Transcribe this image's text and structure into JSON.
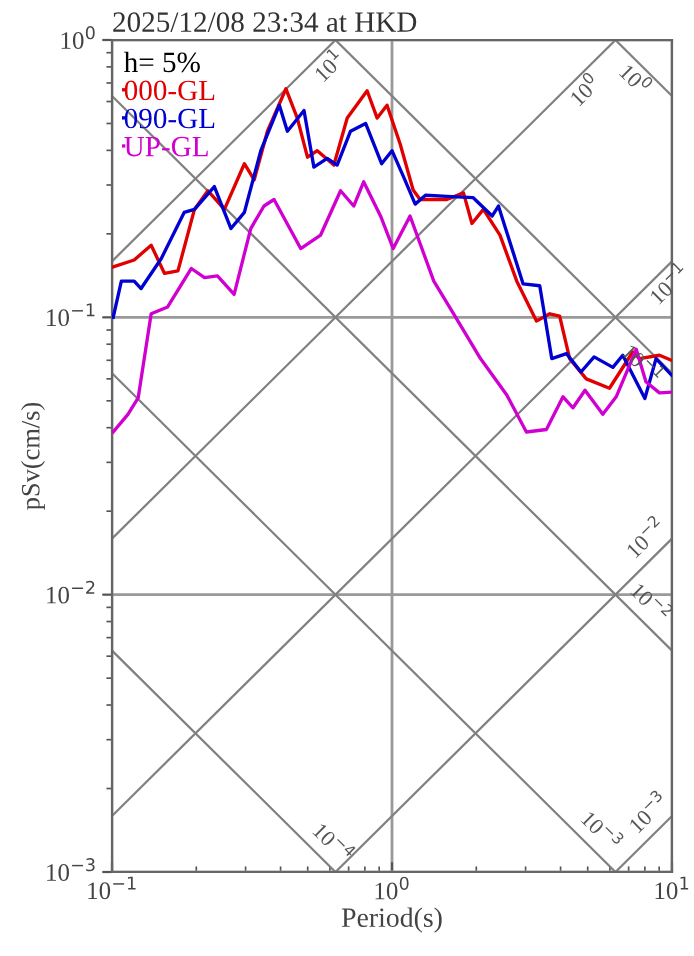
{
  "chart_data": {
    "type": "line",
    "title": "2025/12/08 23:34 at HKD",
    "xlabel": "Period(s)",
    "ylabel": "pSv(cm/s)",
    "legend_title": "h= 5%",
    "legend": "top left",
    "log": "xy",
    "grid": true,
    "line_style": "solid",
    "marker": "none",
    "xlim": [
      0.1,
      10
    ],
    "ylim": [
      0.001,
      1
    ],
    "xticks": [
      {
        "value": 0.1,
        "label": "10$^{−1}$"
      },
      {
        "value": 1,
        "label": "10$^{0}$"
      },
      {
        "value": 10,
        "label": "10$^{1}$"
      }
    ],
    "yticks": [
      {
        "value": 0.001,
        "label": "10$^{−3}$"
      },
      {
        "value": 0.01,
        "label": "10$^{−2}$"
      },
      {
        "value": 0.1,
        "label": "10$^{−1}$"
      },
      {
        "value": 1,
        "label": "10$^{0}$"
      }
    ],
    "series": [
      {
        "color": "#808080",
        "x": [
          0.1,
          0.6283
        ],
        "values": [
          0.1592,
          1
        ]
      },
      {
        "color": "#808080",
        "x": [
          0.1,
          6.283
        ],
        "values": [
          0.01592,
          1
        ]
      },
      {
        "color": "#808080",
        "x": [
          0.1,
          10
        ],
        "values": [
          0.001592,
          0.1592
        ]
      },
      {
        "color": "#808080",
        "x": [
          0.6283,
          10
        ],
        "values": [
          0.001,
          0.01592
        ]
      },
      {
        "color": "#808080",
        "x": [
          6.283,
          10
        ],
        "values": [
          0.001,
          0.001592
        ]
      },
      {
        "color": "#808080",
        "x": [
          6.283,
          10
        ],
        "values": [
          1,
          0.6283
        ]
      },
      {
        "color": "#808080",
        "x": [
          0.6283,
          10
        ],
        "values": [
          1,
          0.06283
        ]
      },
      {
        "color": "#808080",
        "x": [
          0.1,
          10
        ],
        "values": [
          0.6283,
          0.006283
        ]
      },
      {
        "color": "#808080",
        "x": [
          0.1,
          6.283
        ],
        "values": [
          0.06283,
          0.001
        ]
      },
      {
        "color": "#808080",
        "x": [
          0.1,
          0.6283
        ],
        "values": [
          0.006283,
          0.001
        ]
      },
      {
        "name": "000-GL",
        "color": "#e00000",
        "x": [
          0.101,
          0.12,
          0.138,
          0.154,
          0.172,
          0.197,
          0.22,
          0.252,
          0.297,
          0.322,
          0.359,
          0.418,
          0.459,
          0.499,
          0.541,
          0.62,
          0.692,
          0.815,
          0.885,
          0.96,
          1.07,
          1.19,
          1.26,
          1.57,
          1.8,
          1.93,
          2.12,
          2.43,
          2.79,
          3.28,
          3.66,
          3.97,
          4.31,
          4.94,
          5.98,
          7.24,
          7.65,
          9.02,
          9.95
        ],
        "values": [
          0.152,
          0.161,
          0.182,
          0.144,
          0.147,
          0.245,
          0.286,
          0.245,
          0.358,
          0.313,
          0.469,
          0.667,
          0.523,
          0.378,
          0.399,
          0.354,
          0.523,
          0.656,
          0.523,
          0.582,
          0.421,
          0.288,
          0.266,
          0.266,
          0.281,
          0.218,
          0.245,
          0.198,
          0.135,
          0.097,
          0.103,
          0.101,
          0.071,
          0.06,
          0.0555,
          0.075,
          0.071,
          0.073,
          0.07
        ]
      },
      {
        "name": "090-GL",
        "color": "#0000d0",
        "x": [
          0.101,
          0.108,
          0.12,
          0.127,
          0.15,
          0.181,
          0.197,
          0.232,
          0.266,
          0.297,
          0.34,
          0.396,
          0.423,
          0.485,
          0.526,
          0.587,
          0.637,
          0.711,
          0.805,
          0.918,
          1.0,
          1.1,
          1.21,
          1.32,
          1.57,
          1.95,
          2.28,
          2.4,
          2.94,
          3.37,
          3.72,
          4.2,
          4.73,
          5.27,
          6.15,
          6.67,
          8.0,
          8.77,
          9.95
        ],
        "values": [
          0.1,
          0.135,
          0.135,
          0.127,
          0.163,
          0.239,
          0.245,
          0.296,
          0.209,
          0.239,
          0.399,
          0.582,
          0.469,
          0.557,
          0.348,
          0.374,
          0.354,
          0.469,
          0.5,
          0.358,
          0.399,
          0.321,
          0.256,
          0.276,
          0.273,
          0.27,
          0.232,
          0.252,
          0.132,
          0.13,
          0.071,
          0.074,
          0.0635,
          0.072,
          0.066,
          0.073,
          0.051,
          0.071,
          0.062
        ]
      },
      {
        "name": "UP-GL",
        "color": "#d000d0",
        "x": [
          0.101,
          0.114,
          0.124,
          0.138,
          0.158,
          0.192,
          0.214,
          0.238,
          0.273,
          0.313,
          0.349,
          0.379,
          0.472,
          0.556,
          0.655,
          0.73,
          0.792,
          0.91,
          1.01,
          1.16,
          1.41,
          1.66,
          2.07,
          2.57,
          3.02,
          3.56,
          4.08,
          4.43,
          4.89,
          5.66,
          6.32,
          7.45,
          8.07,
          9.02,
          9.95
        ],
        "values": [
          0.0386,
          0.0447,
          0.0512,
          0.103,
          0.109,
          0.15,
          0.139,
          0.141,
          0.121,
          0.209,
          0.252,
          0.266,
          0.177,
          0.198,
          0.286,
          0.252,
          0.308,
          0.232,
          0.177,
          0.232,
          0.135,
          0.103,
          0.071,
          0.0525,
          0.0386,
          0.0394,
          0.0517,
          0.0472,
          0.0546,
          0.0447,
          0.0517,
          0.0767,
          0.0586,
          0.0534,
          0.0537
        ]
      }
    ],
    "annotations": [
      {
        "text": "10$^{1}$",
        "x": 0.55,
        "y": 0.875
      },
      {
        "text": "10$^{0}$",
        "x": 4.5,
        "y": 0.716
      },
      {
        "text": "10$^{0}$",
        "x": 8.0,
        "y": 0.785
      },
      {
        "text": "10$^{−1}$",
        "x": 9.0,
        "y": 0.143
      },
      {
        "text": "10$^{−1}$",
        "x": 8.5,
        "y": 0.0739
      },
      {
        "text": "10$^{−2}$",
        "x": 9.0,
        "y": 0.0143
      },
      {
        "text": "10$^{−2}$",
        "x": 7.5,
        "y": 0.00838
      },
      {
        "text": "10$^{−4}$",
        "x": 0.55,
        "y": 0.00114
      },
      {
        "text": "10$^{−3}$",
        "x": 5.0,
        "y": 0.00126
      },
      {
        "text": "10$^{−3}$",
        "x": 9.2,
        "y": 0.00146
      }
    ]
  }
}
